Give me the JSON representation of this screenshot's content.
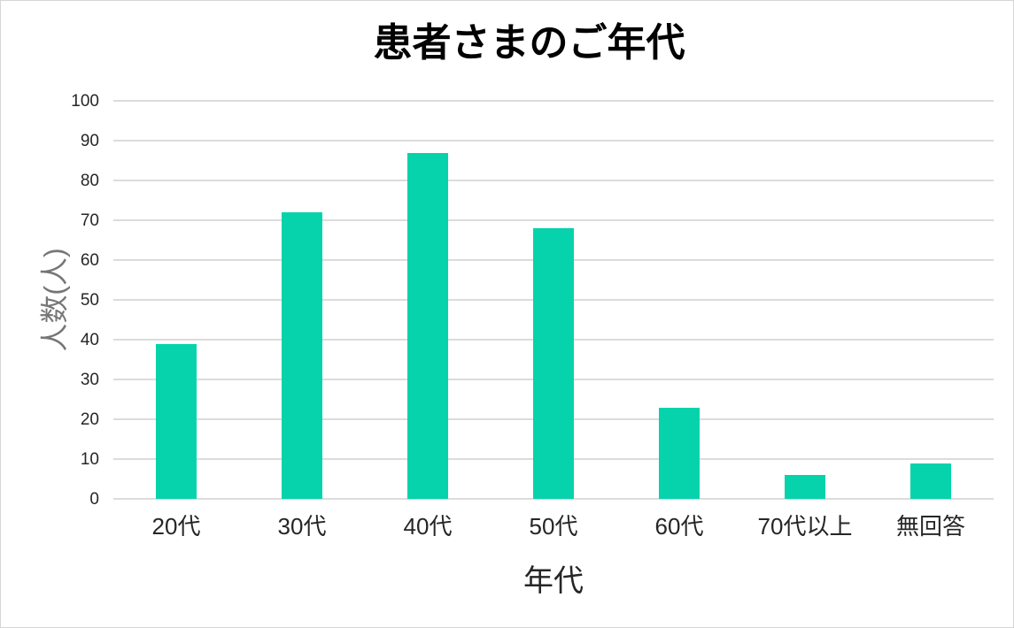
{
  "chart_data": {
    "type": "bar",
    "title": "患者さまのご年代",
    "xlabel": "年代",
    "ylabel": "人数(人)",
    "categories": [
      "20代",
      "30代",
      "40代",
      "50代",
      "60代",
      "70代以上",
      "無回答"
    ],
    "values": [
      39,
      72,
      87,
      68,
      23,
      6,
      9
    ],
    "ylim": [
      0,
      100
    ],
    "ytick_step": 10,
    "yticks": [
      0,
      10,
      20,
      30,
      40,
      50,
      60,
      70,
      80,
      90,
      100
    ],
    "grid": true,
    "legend_position": "none",
    "bar_color": "#06d3ac"
  },
  "colors": {
    "bar": "#06d3ac",
    "gridline": "#dcdcdc",
    "tick_text": "#262626",
    "y_axis_title": "#767676",
    "x_axis_title": "#262626",
    "chart_title": "#000000",
    "frame_border": "#d6d6d6",
    "background": "#ffffff"
  }
}
